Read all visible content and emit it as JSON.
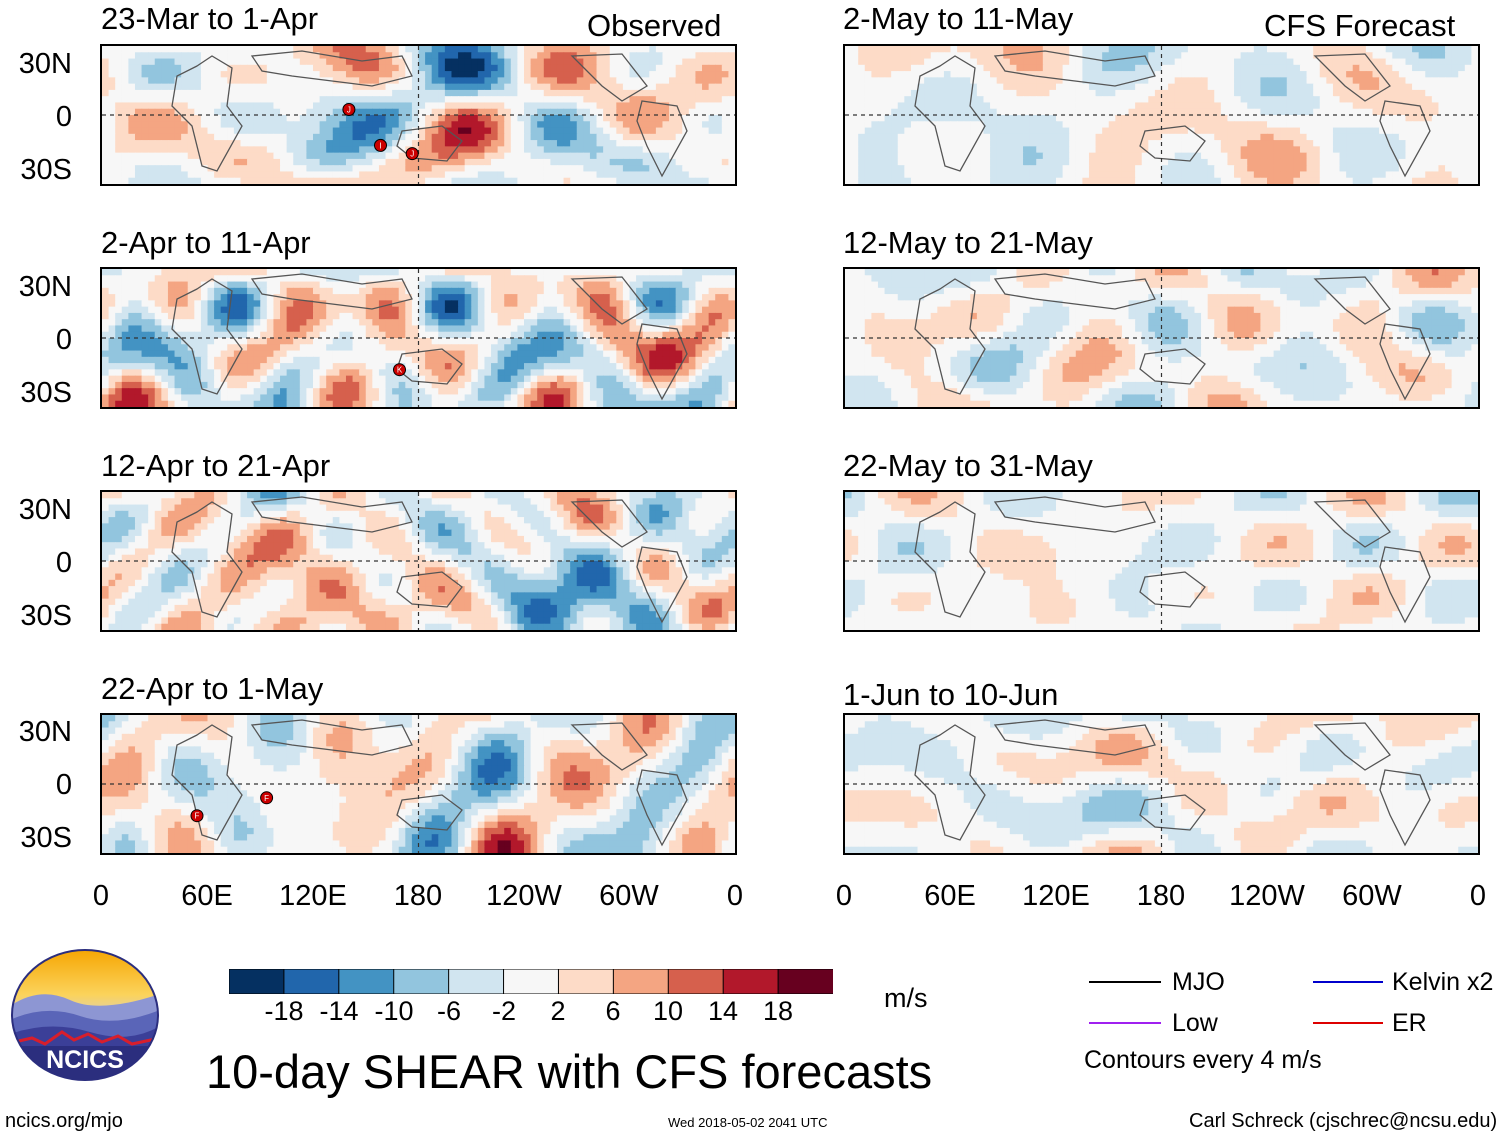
{
  "columns": [
    {
      "label": "Observed"
    },
    {
      "label": "CFS Forecast"
    }
  ],
  "panels": [
    {
      "title": "23-Mar to 1-Apr",
      "source": "Observed",
      "storms": [
        "J",
        "I",
        "J"
      ]
    },
    {
      "title": "2-Apr to 11-Apr",
      "source": "Observed",
      "storms": [
        "K"
      ]
    },
    {
      "title": "12-Apr to 21-Apr",
      "source": "Observed",
      "storms": []
    },
    {
      "title": "22-Apr to 1-May",
      "source": "Observed",
      "storms": [
        "F",
        "F"
      ]
    },
    {
      "title": "2-May to 11-May",
      "source": "CFS Forecast",
      "storms": []
    },
    {
      "title": "12-May to 21-May",
      "source": "CFS Forecast",
      "storms": []
    },
    {
      "title": "22-May to 31-May",
      "source": "CFS Forecast",
      "storms": []
    },
    {
      "title": "1-Jun to 10-Jun",
      "source": "CFS Forecast",
      "storms": []
    }
  ],
  "chart_data": {
    "type": "heatmap",
    "title": "10-day SHEAR with CFS forecasts",
    "units": "m/s",
    "variable": "vertical wind shear",
    "y_ticks": [
      "30N",
      "0",
      "30S"
    ],
    "x_ticks": [
      "0",
      "60E",
      "120E",
      "180",
      "120W",
      "60W",
      "0"
    ],
    "x_range_deg": [
      0,
      360
    ],
    "y_range_deg": [
      -40,
      40
    ],
    "colorbar": {
      "ticks": [
        "-18",
        "-14",
        "-10",
        "-6",
        "-2",
        "2",
        "6",
        "10",
        "14",
        "18"
      ],
      "colors": [
        "#053061",
        "#2166ac",
        "#4393c3",
        "#92c5de",
        "#d1e5f0",
        "#f7f7f7",
        "#fddbc7",
        "#f4a582",
        "#d6604d",
        "#b2182b",
        "#67001f"
      ]
    },
    "contour_legend": [
      {
        "label": "MJO",
        "color": "#000000"
      },
      {
        "label": "Kelvin x2",
        "color": "#0000cc"
      },
      {
        "label": "Low",
        "color": "#a020f0"
      },
      {
        "label": "ER",
        "color": "#dd0000"
      }
    ],
    "contour_note": "Contours every 4 m/s"
  },
  "branding": {
    "logo_text": "NCICS",
    "url": "ncics.org/mjo",
    "timestamp": "Wed 2018-05-02 2041 UTC",
    "credit": "Carl Schreck (cjschrec@ncsu.edu)"
  }
}
